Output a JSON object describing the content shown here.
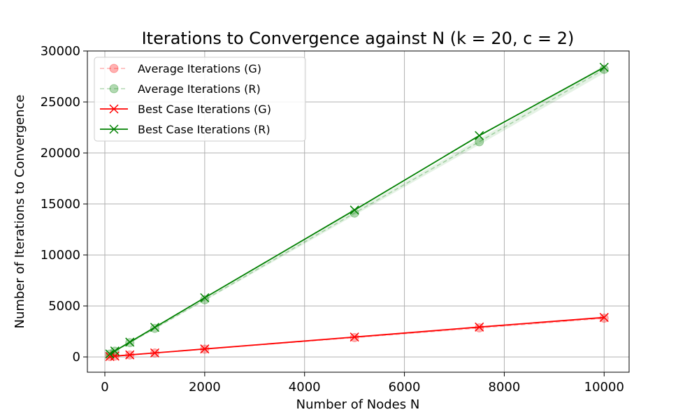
{
  "chart_data": {
    "type": "line",
    "title": "Iterations to Convergence against N (k = 20, c = 2)",
    "xlabel": "Number of Nodes N",
    "ylabel": "Number of Iterations to Convergence",
    "xlim": [
      -350,
      10500
    ],
    "ylim": [
      -1500,
      30000
    ],
    "xticks": [
      0,
      2000,
      4000,
      6000,
      8000,
      10000
    ],
    "yticks": [
      0,
      5000,
      10000,
      15000,
      20000,
      25000,
      30000
    ],
    "grid": true,
    "legend_position": "top-left",
    "x": [
      100,
      200,
      500,
      1000,
      2000,
      5000,
      7500,
      10000
    ],
    "series": [
      {
        "name": "Average Iterations (G)",
        "style": "dashed-circle",
        "color": "#ff0000",
        "values": [
          40,
          80,
          190,
          380,
          760,
          1900,
          2850,
          3800
        ]
      },
      {
        "name": "Average Iterations (R)",
        "style": "dashed-circle",
        "color": "#008000",
        "values": [
          280,
          560,
          1400,
          2800,
          5600,
          14100,
          21100,
          28200
        ]
      },
      {
        "name": "Best Case Iterations (G)",
        "style": "solid-x",
        "color": "#ff0000",
        "values": [
          40,
          80,
          200,
          390,
          780,
          1950,
          2930,
          3870
        ]
      },
      {
        "name": "Best Case Iterations (R)",
        "style": "solid-x",
        "color": "#008000",
        "values": [
          290,
          580,
          1450,
          2900,
          5800,
          14400,
          21700,
          28400
        ]
      }
    ]
  }
}
